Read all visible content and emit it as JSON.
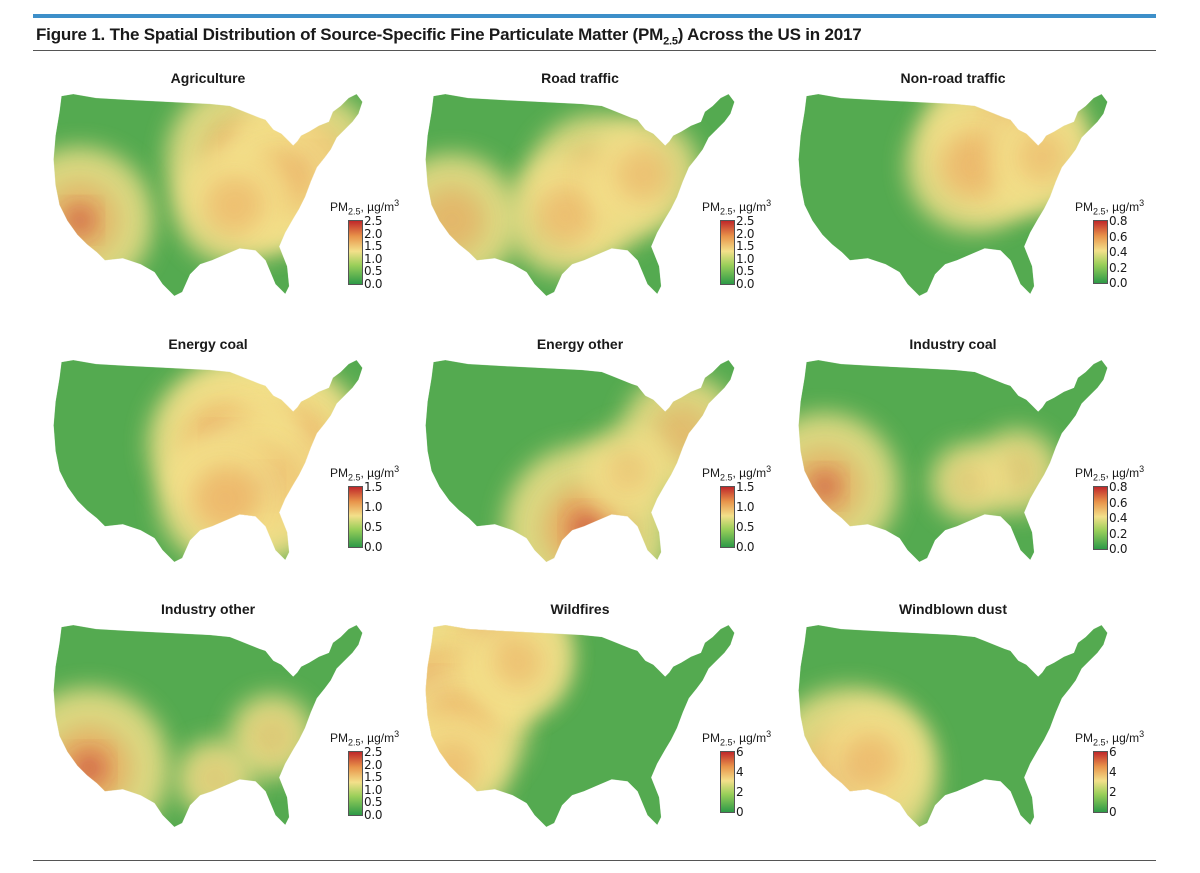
{
  "figure": {
    "title_prefix": "Figure 1. The Spatial Distribution of Source-Specific Fine Particulate Matter (PM",
    "title_sub": "2.5",
    "title_suffix": ") Across the US in 2017"
  },
  "legend_label": {
    "prefix": "PM",
    "sub": "2.5",
    "unit": ", µg/m",
    "sup": "3"
  },
  "colors": {
    "low": "#2e9a48",
    "mid": "#f3e08a",
    "high": "#c0282a",
    "accent_rule": "#3d8fc9"
  },
  "panels": [
    {
      "title": "Agriculture",
      "ticks": [
        "2.5",
        "2.0",
        "1.5",
        "1.0",
        "0.5",
        "0.0"
      ],
      "hotspots": [
        [
          0.62,
          0.33,
          0.9
        ],
        [
          0.8,
          0.36,
          0.85
        ],
        [
          0.72,
          0.45,
          0.7
        ],
        [
          0.09,
          0.62,
          0.8
        ],
        [
          0.58,
          0.55,
          0.6
        ]
      ]
    },
    {
      "title": "Road traffic",
      "ticks": [
        "2.5",
        "2.0",
        "1.5",
        "1.0",
        "0.5",
        "0.0"
      ],
      "hotspots": [
        [
          0.55,
          0.45,
          0.75
        ],
        [
          0.45,
          0.6,
          0.6
        ],
        [
          0.7,
          0.4,
          0.55
        ],
        [
          0.09,
          0.62,
          0.7
        ]
      ]
    },
    {
      "title": "Non-road traffic",
      "ticks": [
        "0.8",
        "0.6",
        "0.4",
        "0.2",
        "0.0"
      ],
      "hotspots": [
        [
          0.66,
          0.22,
          0.9
        ],
        [
          0.56,
          0.36,
          0.7
        ],
        [
          0.78,
          0.32,
          0.5
        ]
      ]
    },
    {
      "title": "Energy coal",
      "ticks": [
        "1.5",
        "1.0",
        "0.5",
        "0.0"
      ],
      "hotspots": [
        [
          0.65,
          0.4,
          1.0
        ],
        [
          0.75,
          0.45,
          0.95
        ],
        [
          0.55,
          0.42,
          0.85
        ],
        [
          0.66,
          0.62,
          0.85
        ],
        [
          0.55,
          0.68,
          0.7
        ]
      ]
    },
    {
      "title": "Energy other",
      "ticks": [
        "1.5",
        "1.0",
        "0.5",
        "0.0"
      ],
      "hotspots": [
        [
          0.52,
          0.82,
          0.95
        ],
        [
          0.82,
          0.37,
          0.6
        ],
        [
          0.65,
          0.55,
          0.4
        ]
      ]
    },
    {
      "title": "Industry coal",
      "ticks": [
        "0.8",
        "0.6",
        "0.4",
        "0.2",
        "0.0"
      ],
      "hotspots": [
        [
          0.09,
          0.62,
          0.8
        ],
        [
          0.7,
          0.55,
          0.35
        ],
        [
          0.55,
          0.6,
          0.3
        ]
      ]
    },
    {
      "title": "Industry other",
      "ticks": [
        "2.5",
        "2.0",
        "1.5",
        "1.0",
        "0.5",
        "0.0"
      ],
      "hotspots": [
        [
          0.12,
          0.7,
          0.9
        ],
        [
          0.7,
          0.55,
          0.35
        ],
        [
          0.52,
          0.75,
          0.3
        ]
      ]
    },
    {
      "title": "Wildfires",
      "ticks": [
        "6",
        "4",
        "2",
        "0"
      ],
      "hotspots": [
        [
          0.2,
          0.12,
          0.95
        ],
        [
          0.05,
          0.33,
          0.85
        ],
        [
          0.12,
          0.5,
          0.7
        ],
        [
          0.09,
          0.7,
          0.55
        ],
        [
          0.3,
          0.2,
          0.5
        ]
      ]
    },
    {
      "title": "Windblown dust",
      "ticks": [
        "6",
        "4",
        "2",
        "0"
      ],
      "hotspots": [
        [
          0.17,
          0.73,
          1.0
        ],
        [
          0.24,
          0.66,
          0.55
        ]
      ]
    }
  ]
}
